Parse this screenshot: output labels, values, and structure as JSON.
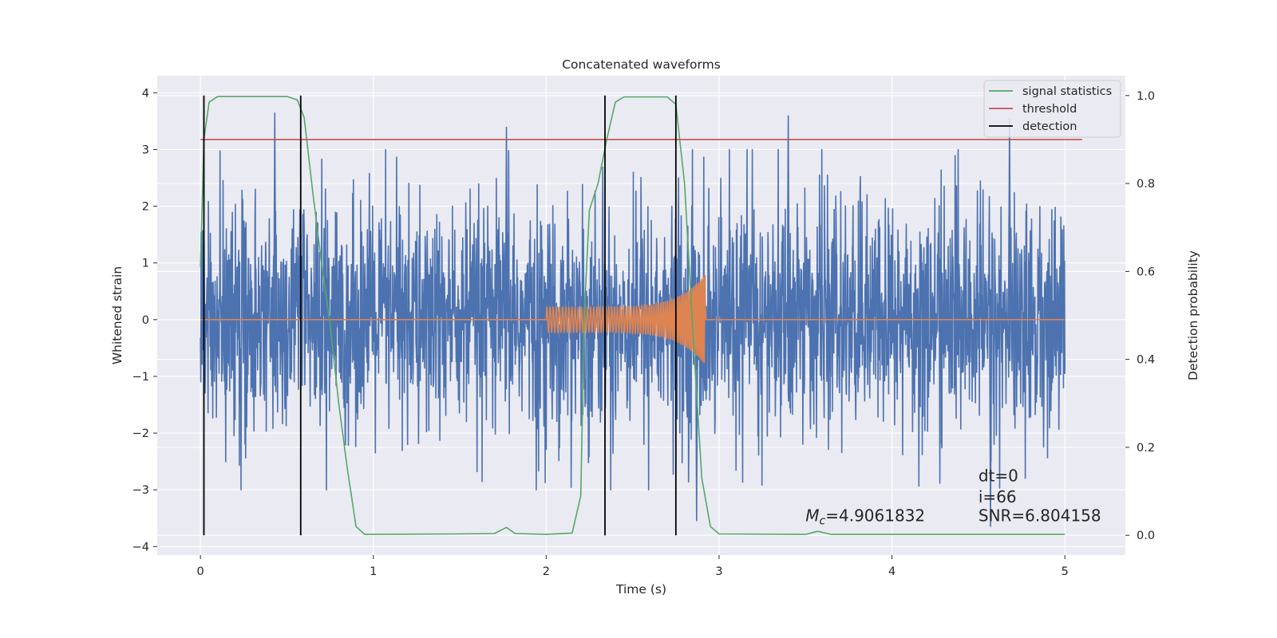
{
  "chart_data": {
    "type": "line",
    "title": "Concatenated waveforms",
    "xlabel": "Time (s)",
    "ylabel": "Whitened strain",
    "ylabel_right": "Detection probability",
    "xlim": [
      -0.25,
      5.35
    ],
    "ylim": [
      -4.15,
      4.3
    ],
    "ylim_right": [
      -0.045,
      1.045
    ],
    "x_ticks": [
      0,
      1,
      2,
      3,
      4,
      5
    ],
    "x_tick_labels": [
      "0",
      "1",
      "2",
      "3",
      "4",
      "5"
    ],
    "y_ticks": [
      -4,
      -3,
      -2,
      -1,
      0,
      1,
      2,
      3,
      4
    ],
    "y_tick_labels": [
      "−4",
      "−3",
      "−2",
      "−1",
      "0",
      "1",
      "2",
      "3",
      "4"
    ],
    "y_right_ticks": [
      0.0,
      0.2,
      0.4,
      0.6,
      0.8,
      1.0
    ],
    "y_right_tick_labels": [
      "0.0",
      "0.2",
      "0.4",
      "0.6",
      "0.8",
      "1.0"
    ],
    "grid": true,
    "legend_position": "top-right",
    "colors": {
      "background": "#eaeaf2",
      "grid": "#ffffff",
      "noise": "#4c72b0",
      "waveform": "#dd8452",
      "signal_statistics": "#55a868",
      "threshold": "#c44e52",
      "detection": "#000000"
    },
    "series": [
      {
        "name": "",
        "axis": "left",
        "kind": "noisy strain",
        "x_range": [
          0,
          5
        ],
        "amplitude_envelope": 2.5,
        "peak_spikes": [
          {
            "x": 0.43,
            "y": 3.65
          },
          {
            "x": 1.77,
            "y": 3.4
          },
          {
            "x": 3.4,
            "y": 3.6
          },
          {
            "x": 4.68,
            "y": 3.55
          },
          {
            "x": 2.87,
            "y": -3.55
          },
          {
            "x": 4.57,
            "y": -3.65
          }
        ]
      },
      {
        "name": "",
        "axis": "left",
        "kind": "chirp waveform",
        "x_range": [
          2.0,
          2.92
        ],
        "amplitude_start": 0.22,
        "amplitude_peak": 0.8,
        "baseline": 0
      },
      {
        "name": "signal statistics",
        "axis": "right",
        "points": [
          [
            0.0,
            0.61
          ],
          [
            0.02,
            0.9
          ],
          [
            0.05,
            0.985
          ],
          [
            0.1,
            0.998
          ],
          [
            0.5,
            0.998
          ],
          [
            0.56,
            0.99
          ],
          [
            0.6,
            0.95
          ],
          [
            0.65,
            0.78
          ],
          [
            0.7,
            0.62
          ],
          [
            0.75,
            0.48
          ],
          [
            0.8,
            0.3
          ],
          [
            0.85,
            0.15
          ],
          [
            0.9,
            0.02
          ],
          [
            0.95,
            0.002
          ],
          [
            1.5,
            0.003
          ],
          [
            1.7,
            0.004
          ],
          [
            1.77,
            0.018
          ],
          [
            1.82,
            0.004
          ],
          [
            2.0,
            0.002
          ],
          [
            2.15,
            0.005
          ],
          [
            2.2,
            0.09
          ],
          [
            2.22,
            0.5
          ],
          [
            2.25,
            0.74
          ],
          [
            2.3,
            0.8
          ],
          [
            2.35,
            0.9
          ],
          [
            2.4,
            0.985
          ],
          [
            2.45,
            0.997
          ],
          [
            2.7,
            0.997
          ],
          [
            2.75,
            0.98
          ],
          [
            2.8,
            0.8
          ],
          [
            2.85,
            0.45
          ],
          [
            2.9,
            0.13
          ],
          [
            2.95,
            0.02
          ],
          [
            3.0,
            0.003
          ],
          [
            3.5,
            0.002
          ],
          [
            3.57,
            0.009
          ],
          [
            3.65,
            0.002
          ],
          [
            5.0,
            0.002
          ]
        ]
      },
      {
        "name": "threshold",
        "axis": "right",
        "points": [
          [
            0,
            0.9
          ],
          [
            5.1,
            0.9
          ]
        ]
      },
      {
        "name": "detection",
        "axis": "right",
        "vertical_lines_x": [
          0.02,
          0.58,
          2.34,
          2.75
        ],
        "y_range": [
          0,
          1.0
        ]
      }
    ],
    "annotations": [
      {
        "id": "mc",
        "symbol": "M",
        "subscript": "c",
        "text": "=4.9061832",
        "x": 3.5,
        "y": -3.55
      },
      {
        "id": "dt",
        "text": "dt=0",
        "x": 4.5,
        "y": -2.85
      },
      {
        "id": "i",
        "text": "i=66",
        "x": 4.5,
        "y": -3.22
      },
      {
        "id": "snr",
        "text": "SNR=6.804158",
        "x": 4.5,
        "y": -3.55
      }
    ]
  }
}
